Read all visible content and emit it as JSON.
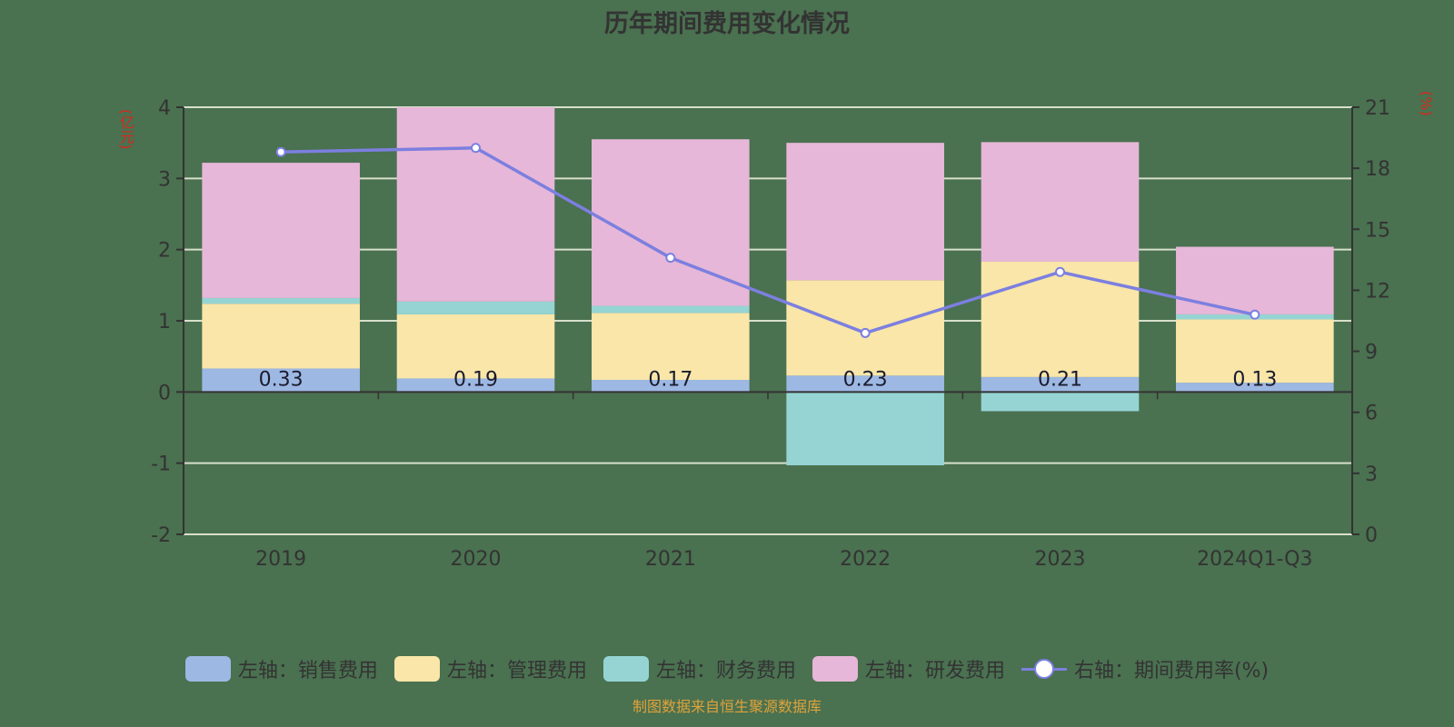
{
  "title": "历年期间费用变化情况",
  "left_axis_unit": "(亿元)",
  "right_axis_unit": "(%)",
  "source_note": "制图数据来自恒生聚源数据库",
  "colors": {
    "background": "#4a7150",
    "sales": "#9db8e3",
    "admin": "#f9e6a8",
    "finance": "#96d4d4",
    "rnd": "#e6b7d8",
    "rate_line": "#7c7fe0",
    "gridline": "#d8e0cc",
    "axis": "#333333",
    "unit_text": "#d42a1e",
    "source_text": "#e0a23a"
  },
  "legend": [
    {
      "label": "左轴：销售费用",
      "color": "#9db8e3",
      "type": "bar"
    },
    {
      "label": "左轴：管理费用",
      "color": "#f9e6a8",
      "type": "bar"
    },
    {
      "label": "左轴：财务费用",
      "color": "#96d4d4",
      "type": "bar"
    },
    {
      "label": "左轴：研发费用",
      "color": "#e6b7d8",
      "type": "bar"
    },
    {
      "label": "右轴：期间费用率(%)",
      "color": "#7c7fe0",
      "type": "line"
    }
  ],
  "chart_data": {
    "type": "bar",
    "stacked": true,
    "title": "历年期间费用变化情况",
    "categories": [
      "2019",
      "2020",
      "2021",
      "2022",
      "2023",
      "2024Q1-Q3"
    ],
    "ylabel": "(亿元)",
    "ylabel_right": "(%)",
    "ylim": [
      -2,
      4
    ],
    "yticks": [
      -2,
      -1,
      0,
      1,
      2,
      3,
      4
    ],
    "ylim_right": [
      0,
      21
    ],
    "yticks_right": [
      0,
      3,
      6,
      9,
      12,
      15,
      18,
      21
    ],
    "grid": true,
    "legend_position": "bottom",
    "series": [
      {
        "name": "左轴：销售费用",
        "axis": "left",
        "type": "bar",
        "values": [
          0.33,
          0.19,
          0.17,
          0.23,
          0.21,
          0.13
        ],
        "data_labels": [
          "0.33",
          "0.19",
          "0.17",
          "0.23",
          "0.21",
          "0.13"
        ]
      },
      {
        "name": "左轴：管理费用",
        "axis": "left",
        "type": "bar",
        "values": [
          0.91,
          0.9,
          0.94,
          1.34,
          1.62,
          0.89
        ]
      },
      {
        "name": "左轴：财务费用",
        "axis": "left",
        "type": "bar",
        "values": [
          0.08,
          0.18,
          0.1,
          -1.03,
          -0.27,
          0.07
        ]
      },
      {
        "name": "左轴：研发费用",
        "axis": "left",
        "type": "bar",
        "values": [
          1.9,
          2.73,
          2.34,
          1.93,
          1.68,
          0.95
        ]
      },
      {
        "name": "右轴：期间费用率(%)",
        "axis": "right",
        "type": "line",
        "values": [
          18.8,
          19.0,
          13.6,
          9.9,
          12.9,
          10.8
        ]
      }
    ]
  }
}
